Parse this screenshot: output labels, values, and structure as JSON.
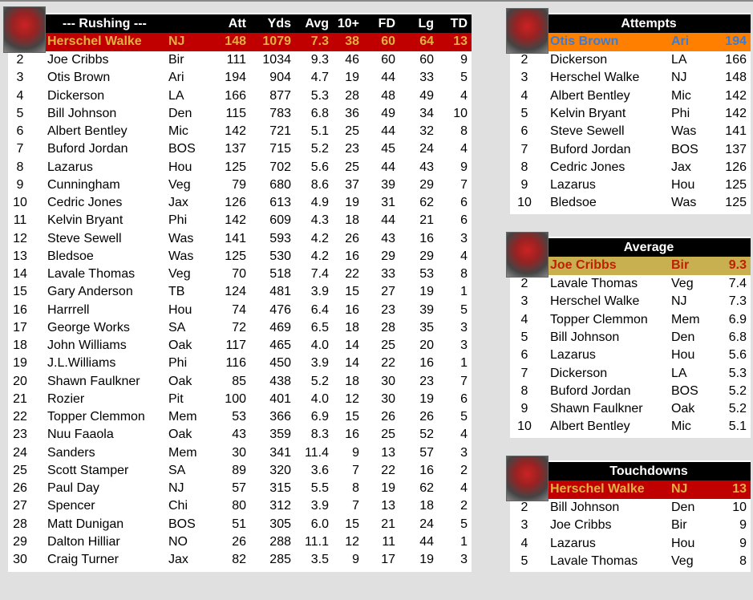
{
  "rushing": {
    "title": "--- Rushing ---",
    "columns": [
      "Att",
      "Yds",
      "Avg",
      "10+",
      "FD",
      "Lg",
      "TD"
    ],
    "leader": {
      "name": "Herschel Walke",
      "team": "NJ",
      "stats": [
        "148",
        "1079",
        "7.3",
        "38",
        "60",
        "64",
        "13"
      ]
    },
    "rows": [
      [
        "2",
        "Joe Cribbs",
        "Bir",
        "111",
        "1034",
        "9.3",
        "46",
        "60",
        "60",
        "9"
      ],
      [
        "3",
        "Otis Brown",
        "Ari",
        "194",
        "904",
        "4.7",
        "19",
        "44",
        "33",
        "5"
      ],
      [
        "4",
        "Dickerson",
        "LA",
        "166",
        "877",
        "5.3",
        "28",
        "48",
        "49",
        "4"
      ],
      [
        "5",
        "Bill Johnson",
        "Den",
        "115",
        "783",
        "6.8",
        "36",
        "49",
        "34",
        "10"
      ],
      [
        "6",
        "Albert Bentley",
        "Mic",
        "142",
        "721",
        "5.1",
        "25",
        "44",
        "32",
        "8"
      ],
      [
        "7",
        "Buford Jordan",
        "BOS",
        "137",
        "715",
        "5.2",
        "23",
        "45",
        "24",
        "4"
      ],
      [
        "8",
        "Lazarus",
        "Hou",
        "125",
        "702",
        "5.6",
        "25",
        "44",
        "43",
        "9"
      ],
      [
        "9",
        "Cunningham",
        "Veg",
        "79",
        "680",
        "8.6",
        "37",
        "39",
        "29",
        "7"
      ],
      [
        "10",
        "Cedric Jones",
        "Jax",
        "126",
        "613",
        "4.9",
        "19",
        "31",
        "62",
        "6"
      ],
      [
        "11",
        "Kelvin Bryant",
        "Phi",
        "142",
        "609",
        "4.3",
        "18",
        "44",
        "21",
        "6"
      ],
      [
        "12",
        "Steve Sewell",
        "Was",
        "141",
        "593",
        "4.2",
        "26",
        "43",
        "16",
        "3"
      ],
      [
        "13",
        "Bledsoe",
        "Was",
        "125",
        "530",
        "4.2",
        "16",
        "29",
        "29",
        "4"
      ],
      [
        "14",
        "Lavale Thomas",
        "Veg",
        "70",
        "518",
        "7.4",
        "22",
        "33",
        "53",
        "8"
      ],
      [
        "15",
        "Gary Anderson",
        "TB",
        "124",
        "481",
        "3.9",
        "15",
        "27",
        "19",
        "1"
      ],
      [
        "16",
        "Harrrell",
        "Hou",
        "74",
        "476",
        "6.4",
        "16",
        "23",
        "39",
        "5"
      ],
      [
        "17",
        "George Works",
        "SA",
        "72",
        "469",
        "6.5",
        "18",
        "28",
        "35",
        "3"
      ],
      [
        "18",
        "John Williams",
        "Oak",
        "117",
        "465",
        "4.0",
        "14",
        "25",
        "20",
        "3"
      ],
      [
        "19",
        "J.L.Williams",
        "Phi",
        "116",
        "450",
        "3.9",
        "14",
        "22",
        "16",
        "1"
      ],
      [
        "20",
        "Shawn Faulkner",
        "Oak",
        "85",
        "438",
        "5.2",
        "18",
        "30",
        "23",
        "7"
      ],
      [
        "21",
        "Rozier",
        "Pit",
        "100",
        "401",
        "4.0",
        "12",
        "30",
        "19",
        "6"
      ],
      [
        "22",
        "Topper Clemmon",
        "Mem",
        "53",
        "366",
        "6.9",
        "15",
        "26",
        "26",
        "5"
      ],
      [
        "23",
        "Nuu Faaola",
        "Oak",
        "43",
        "359",
        "8.3",
        "16",
        "25",
        "52",
        "4"
      ],
      [
        "24",
        "Sanders",
        "Mem",
        "30",
        "341",
        "11.4",
        "9",
        "13",
        "57",
        "3"
      ],
      [
        "25",
        "Scott Stamper",
        "SA",
        "89",
        "320",
        "3.6",
        "7",
        "22",
        "16",
        "2"
      ],
      [
        "26",
        "Paul Day",
        "NJ",
        "57",
        "315",
        "5.5",
        "8",
        "19",
        "62",
        "4"
      ],
      [
        "27",
        "Spencer",
        "Chi",
        "80",
        "312",
        "3.9",
        "7",
        "13",
        "18",
        "2"
      ],
      [
        "28",
        "Matt Dunigan",
        "BOS",
        "51",
        "305",
        "6.0",
        "15",
        "21",
        "24",
        "5"
      ],
      [
        "29",
        "Dalton Hilliar",
        "NO",
        "26",
        "288",
        "11.1",
        "12",
        "11",
        "44",
        "1"
      ],
      [
        "30",
        "Craig Turner",
        "Jax",
        "82",
        "285",
        "3.5",
        "9",
        "17",
        "19",
        "3"
      ]
    ]
  },
  "panels": [
    {
      "title": "Attempts",
      "leader": [
        "Otis Brown",
        "Ari",
        "194"
      ],
      "colors": {
        "bg": "#ff8000",
        "fg": "#3a7bd5"
      },
      "rows": [
        [
          "2",
          "Dickerson",
          "LA",
          "166"
        ],
        [
          "3",
          "Herschel Walke",
          "NJ",
          "148"
        ],
        [
          "4",
          "Albert Bentley",
          "Mic",
          "142"
        ],
        [
          "5",
          "Kelvin Bryant",
          "Phi",
          "142"
        ],
        [
          "6",
          "Steve Sewell",
          "Was",
          "141"
        ],
        [
          "7",
          "Buford Jordan",
          "BOS",
          "137"
        ],
        [
          "8",
          "Cedric Jones",
          "Jax",
          "126"
        ],
        [
          "9",
          "Lazarus",
          "Hou",
          "125"
        ],
        [
          "10",
          "Bledsoe",
          "Was",
          "125"
        ]
      ]
    },
    {
      "title": "Average",
      "leader": [
        "Joe Cribbs",
        "Bir",
        "9.3"
      ],
      "colors": {
        "bg": "#c8b050",
        "fg": "#c02000"
      },
      "rows": [
        [
          "2",
          "Lavale Thomas",
          "Veg",
          "7.4"
        ],
        [
          "3",
          "Herschel Walke",
          "NJ",
          "7.3"
        ],
        [
          "4",
          "Topper Clemmon",
          "Mem",
          "6.9"
        ],
        [
          "5",
          "Bill Johnson",
          "Den",
          "6.8"
        ],
        [
          "6",
          "Lazarus",
          "Hou",
          "5.6"
        ],
        [
          "7",
          "Dickerson",
          "LA",
          "5.3"
        ],
        [
          "8",
          "Buford Jordan",
          "BOS",
          "5.2"
        ],
        [
          "9",
          "Shawn Faulkner",
          "Oak",
          "5.2"
        ],
        [
          "10",
          "Albert Bentley",
          "Mic",
          "5.1"
        ]
      ]
    },
    {
      "title": "Touchdowns",
      "leader": [
        "Herschel Walke",
        "NJ",
        "13"
      ],
      "colors": {
        "bg": "#c00000",
        "fg": "#e0b040"
      },
      "rows": [
        [
          "2",
          "Bill Johnson",
          "Den",
          "10"
        ],
        [
          "3",
          "Joe Cribbs",
          "Bir",
          "9"
        ],
        [
          "4",
          "Lazarus",
          "Hou",
          "9"
        ],
        [
          "5",
          "Lavale Thomas",
          "Veg",
          "8"
        ]
      ]
    }
  ],
  "colors": {
    "rushing_leader_bg": "#c00000",
    "rushing_leader_fg": "#e0b040"
  }
}
